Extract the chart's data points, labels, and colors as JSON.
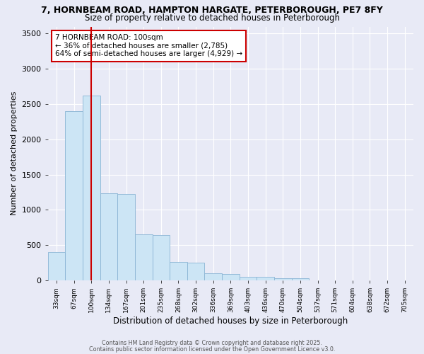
{
  "title_line1": "7, HORNBEAM ROAD, HAMPTON HARGATE, PETERBOROUGH, PE7 8FY",
  "title_line2": "Size of property relative to detached houses in Peterborough",
  "xlabel": "Distribution of detached houses by size in Peterborough",
  "ylabel": "Number of detached properties",
  "bin_labels": [
    "33sqm",
    "67sqm",
    "100sqm",
    "134sqm",
    "167sqm",
    "201sqm",
    "235sqm",
    "268sqm",
    "302sqm",
    "336sqm",
    "369sqm",
    "403sqm",
    "436sqm",
    "470sqm",
    "504sqm",
    "537sqm",
    "571sqm",
    "604sqm",
    "638sqm",
    "672sqm",
    "705sqm"
  ],
  "bar_heights": [
    400,
    2400,
    2620,
    1240,
    1230,
    650,
    645,
    260,
    250,
    100,
    90,
    55,
    50,
    35,
    30,
    5,
    5,
    5,
    5,
    5,
    5
  ],
  "bar_color": "#cce5f5",
  "bar_edgecolor": "#8ab4d4",
  "bg_color": "#e8eaf6",
  "grid_color": "#ffffff",
  "vline_x_index": 2,
  "vline_color": "#cc0000",
  "ylim": [
    0,
    3600
  ],
  "yticks": [
    0,
    500,
    1000,
    1500,
    2000,
    2500,
    3000,
    3500
  ],
  "annotation_text": "7 HORNBEAM ROAD: 100sqm\n← 36% of detached houses are smaller (2,785)\n64% of semi-detached houses are larger (4,929) →",
  "footer_line1": "Contains HM Land Registry data © Crown copyright and database right 2025.",
  "footer_line2": "Contains public sector information licensed under the Open Government Licence v3.0."
}
